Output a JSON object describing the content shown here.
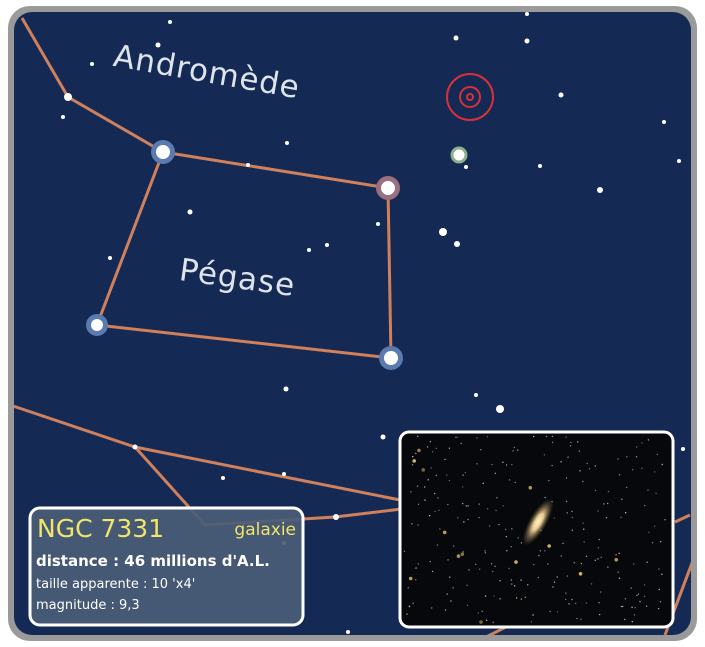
{
  "map": {
    "labels": [
      "Andromède",
      "Pégase"
    ],
    "object": {
      "name": "NGC 7331",
      "kind": "galaxie",
      "distance": "distance : 46 millions d'A.L.",
      "size": "taille apparente : 10 'x4'",
      "magnitude": "magnitude : 9,3"
    }
  }
}
